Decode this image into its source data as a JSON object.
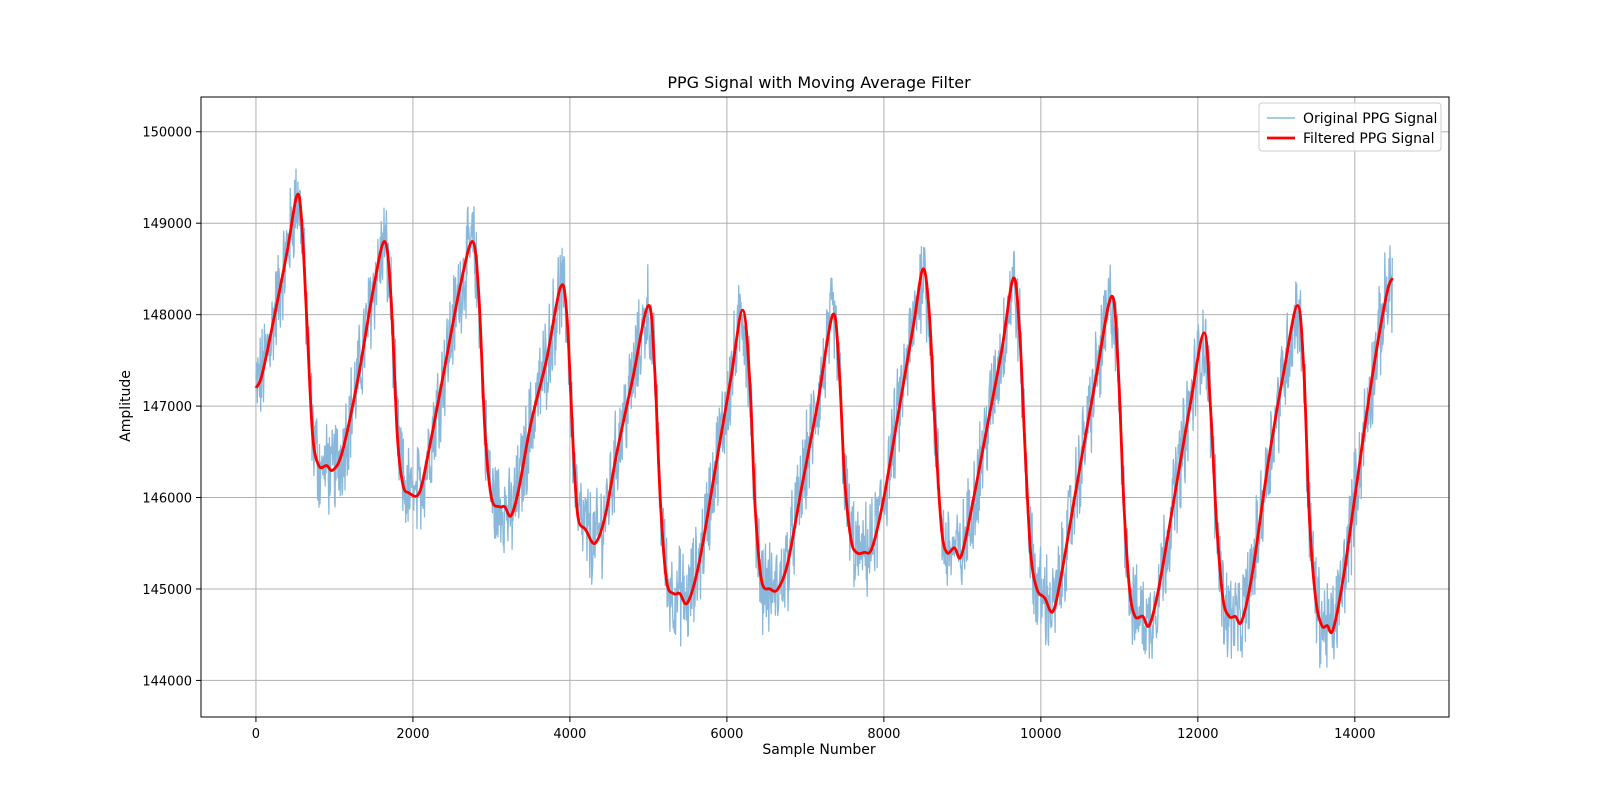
{
  "chart_data": {
    "type": "line",
    "title": "PPG Signal with Moving Average Filter",
    "xlabel": "Sample Number",
    "ylabel": "Amplitude",
    "xlim": [
      -700,
      15200
    ],
    "ylim": [
      143600,
      150380
    ],
    "x_ticks": [
      0,
      2000,
      4000,
      6000,
      8000,
      10000,
      12000,
      14000
    ],
    "y_ticks": [
      144000,
      145000,
      146000,
      147000,
      148000,
      149000,
      150000
    ],
    "grid": true,
    "legend_position": "top-right",
    "series": [
      {
        "name": "Original PPG Signal",
        "color": "#8ab8da",
        "role": "raw",
        "noise_amplitude": 320
      },
      {
        "name": "Filtered PPG Signal",
        "color": "#ff0000",
        "role": "filtered",
        "points": [
          [
            0,
            147200
          ],
          [
            80,
            147350
          ],
          [
            250,
            148050
          ],
          [
            400,
            148700
          ],
          [
            520,
            149300
          ],
          [
            580,
            149050
          ],
          [
            650,
            147900
          ],
          [
            720,
            146700
          ],
          [
            800,
            146350
          ],
          [
            900,
            146350
          ],
          [
            980,
            146300
          ],
          [
            1100,
            146500
          ],
          [
            1300,
            147300
          ],
          [
            1500,
            148300
          ],
          [
            1640,
            148800
          ],
          [
            1720,
            148200
          ],
          [
            1800,
            146700
          ],
          [
            1870,
            146150
          ],
          [
            1950,
            146050
          ],
          [
            2080,
            146050
          ],
          [
            2200,
            146500
          ],
          [
            2400,
            147400
          ],
          [
            2600,
            148300
          ],
          [
            2760,
            148800
          ],
          [
            2840,
            148200
          ],
          [
            2920,
            146700
          ],
          [
            3000,
            146000
          ],
          [
            3100,
            145900
          ],
          [
            3170,
            145900
          ],
          [
            3250,
            145800
          ],
          [
            3350,
            146100
          ],
          [
            3500,
            146800
          ],
          [
            3700,
            147500
          ],
          [
            3880,
            148300
          ],
          [
            3960,
            148000
          ],
          [
            4040,
            146600
          ],
          [
            4100,
            145800
          ],
          [
            4200,
            145650
          ],
          [
            4320,
            145500
          ],
          [
            4450,
            145800
          ],
          [
            4600,
            146500
          ],
          [
            4800,
            147300
          ],
          [
            5000,
            148100
          ],
          [
            5080,
            147400
          ],
          [
            5150,
            146000
          ],
          [
            5230,
            145100
          ],
          [
            5320,
            144950
          ],
          [
            5400,
            144950
          ],
          [
            5500,
            144850
          ],
          [
            5650,
            145300
          ],
          [
            5850,
            146300
          ],
          [
            6050,
            147300
          ],
          [
            6200,
            148050
          ],
          [
            6290,
            147300
          ],
          [
            6360,
            145900
          ],
          [
            6440,
            145100
          ],
          [
            6550,
            145000
          ],
          [
            6650,
            145000
          ],
          [
            6780,
            145300
          ],
          [
            6950,
            146100
          ],
          [
            7150,
            147000
          ],
          [
            7350,
            148000
          ],
          [
            7430,
            147400
          ],
          [
            7500,
            146200
          ],
          [
            7580,
            145550
          ],
          [
            7650,
            145400
          ],
          [
            7750,
            145400
          ],
          [
            7850,
            145450
          ],
          [
            8000,
            146000
          ],
          [
            8200,
            147000
          ],
          [
            8380,
            147900
          ],
          [
            8500,
            148500
          ],
          [
            8580,
            148000
          ],
          [
            8650,
            146800
          ],
          [
            8730,
            145700
          ],
          [
            8800,
            145400
          ],
          [
            8900,
            145450
          ],
          [
            8980,
            145350
          ],
          [
            9100,
            145800
          ],
          [
            9300,
            146700
          ],
          [
            9500,
            147600
          ],
          [
            9650,
            148400
          ],
          [
            9730,
            147800
          ],
          [
            9800,
            146500
          ],
          [
            9870,
            145400
          ],
          [
            9950,
            145000
          ],
          [
            10050,
            144900
          ],
          [
            10150,
            144750
          ],
          [
            10250,
            145100
          ],
          [
            10450,
            146100
          ],
          [
            10700,
            147300
          ],
          [
            10900,
            148200
          ],
          [
            10980,
            147500
          ],
          [
            11060,
            145900
          ],
          [
            11130,
            145000
          ],
          [
            11200,
            144700
          ],
          [
            11300,
            144700
          ],
          [
            11380,
            144600
          ],
          [
            11500,
            145000
          ],
          [
            11700,
            146000
          ],
          [
            11900,
            147000
          ],
          [
            12080,
            147800
          ],
          [
            12160,
            147000
          ],
          [
            12240,
            145700
          ],
          [
            12320,
            144900
          ],
          [
            12400,
            144700
          ],
          [
            12480,
            144700
          ],
          [
            12560,
            144650
          ],
          [
            12700,
            145200
          ],
          [
            12900,
            146400
          ],
          [
            13100,
            147400
          ],
          [
            13270,
            148100
          ],
          [
            13350,
            147400
          ],
          [
            13420,
            145800
          ],
          [
            13500,
            144900
          ],
          [
            13580,
            144600
          ],
          [
            13650,
            144600
          ],
          [
            13720,
            144550
          ],
          [
            13850,
            145100
          ],
          [
            14000,
            146000
          ],
          [
            14200,
            147200
          ],
          [
            14400,
            148200
          ],
          [
            14480,
            148400
          ]
        ]
      }
    ]
  }
}
